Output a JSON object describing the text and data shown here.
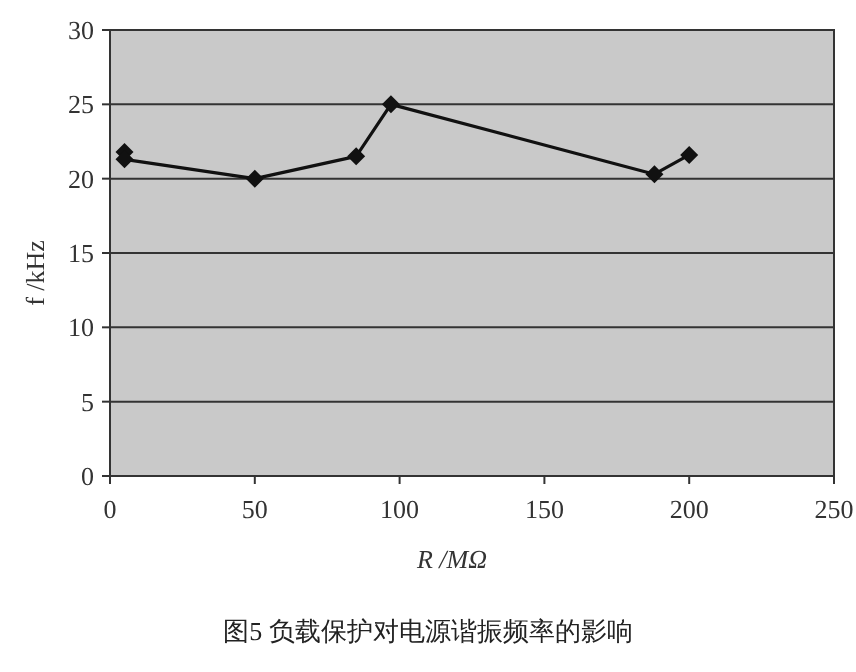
{
  "chart_data": {
    "type": "line",
    "title": "图5  负载保护对电源谐振频率的影响",
    "xlabel": "R /MΩ",
    "ylabel": "f /kHz",
    "x": [
      5,
      5,
      50,
      85,
      97,
      188,
      200
    ],
    "series": [
      {
        "color": "#111111",
        "values": [
          21.8,
          21.3,
          20,
          21.5,
          25,
          20.3,
          21.6
        ]
      }
    ],
    "xlim": [
      0,
      250
    ],
    "xticks": [
      0,
      50,
      100,
      150,
      200,
      250
    ],
    "ylim": [
      0,
      30
    ],
    "yticks": [
      0,
      5,
      10,
      15,
      20,
      25,
      30
    ],
    "grid": "y",
    "marker": "diamond",
    "line_style": "solid"
  }
}
